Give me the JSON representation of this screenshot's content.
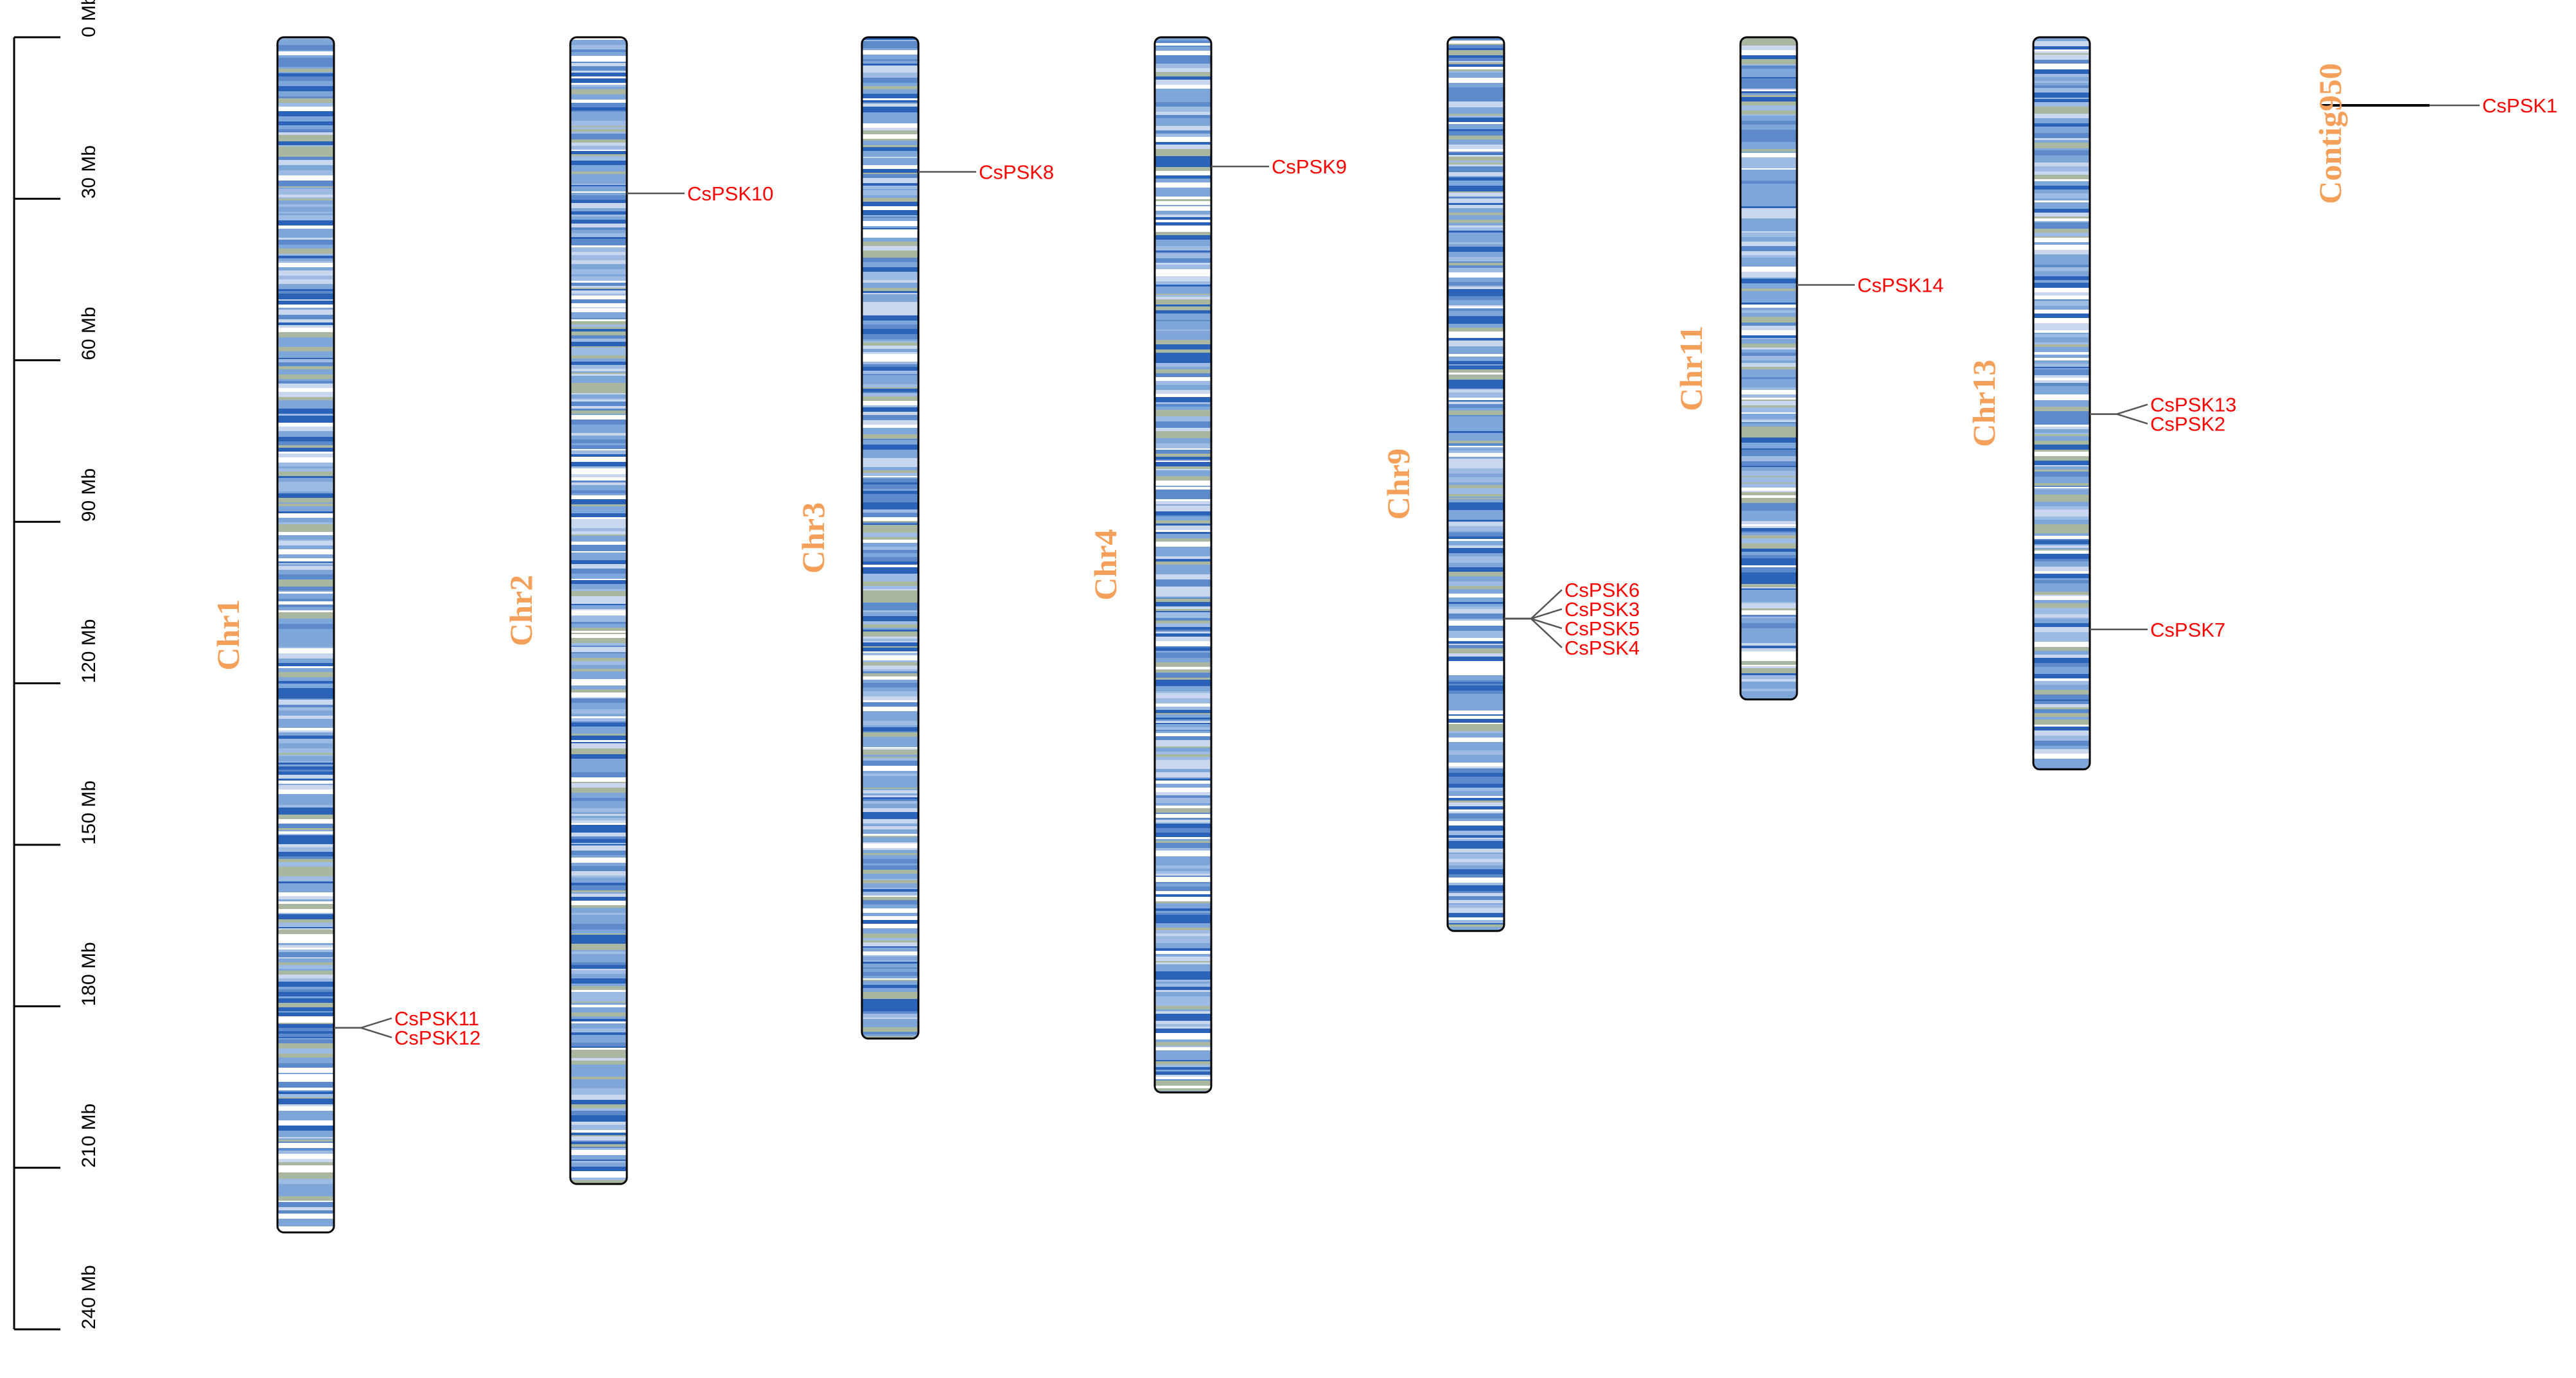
{
  "chart_data": {
    "type": "chromosome-map",
    "axis": {
      "unit": "Mb",
      "min": 0,
      "max": 240,
      "tick_step": 30,
      "ticks": [
        "0 Mb",
        "30 Mb",
        "60 Mb",
        "90 Mb",
        "120 Mb",
        "150 Mb",
        "180 Mb",
        "210 Mb",
        "240 Mb"
      ]
    },
    "chromosomes": [
      {
        "name": "Chr1",
        "length_mb": 222
      },
      {
        "name": "Chr2",
        "length_mb": 213
      },
      {
        "name": "Chr3",
        "length_mb": 186
      },
      {
        "name": "Chr4",
        "length_mb": 196
      },
      {
        "name": "Chr9",
        "length_mb": 166
      },
      {
        "name": "Chr11",
        "length_mb": 123
      },
      {
        "name": "Chr13",
        "length_mb": 136
      },
      {
        "name": "Contig950",
        "length_mb": 0
      }
    ],
    "genes": [
      {
        "name": "CsPSK11",
        "chromosome": "Chr1",
        "position_mb": 184
      },
      {
        "name": "CsPSK12",
        "chromosome": "Chr1",
        "position_mb": 184
      },
      {
        "name": "CsPSK10",
        "chromosome": "Chr2",
        "position_mb": 29
      },
      {
        "name": "CsPSK8",
        "chromosome": "Chr3",
        "position_mb": 25
      },
      {
        "name": "CsPSK9",
        "chromosome": "Chr4",
        "position_mb": 24
      },
      {
        "name": "CsPSK6",
        "chromosome": "Chr9",
        "position_mb": 108
      },
      {
        "name": "CsPSK3",
        "chromosome": "Chr9",
        "position_mb": 108
      },
      {
        "name": "CsPSK5",
        "chromosome": "Chr9",
        "position_mb": 108
      },
      {
        "name": "CsPSK4",
        "chromosome": "Chr9",
        "position_mb": 108
      },
      {
        "name": "CsPSK14",
        "chromosome": "Chr11",
        "position_mb": 46
      },
      {
        "name": "CsPSK13",
        "chromosome": "Chr13",
        "position_mb": 70
      },
      {
        "name": "CsPSK2",
        "chromosome": "Chr13",
        "position_mb": 70
      },
      {
        "name": "CsPSK7",
        "chromosome": "Chr13",
        "position_mb": 110
      },
      {
        "name": "CsPSK1",
        "chromosome": "Contig950",
        "position_mb": 0
      }
    ],
    "colors": {
      "density_low": "#ffffff",
      "density_mid": "#7fa6d8",
      "density_high": "#2a63b8",
      "density_alt": "#a9b7a0",
      "chromosome_label": "#f5a05a",
      "gene_label": "#ff0000",
      "outline": "#000000"
    }
  }
}
